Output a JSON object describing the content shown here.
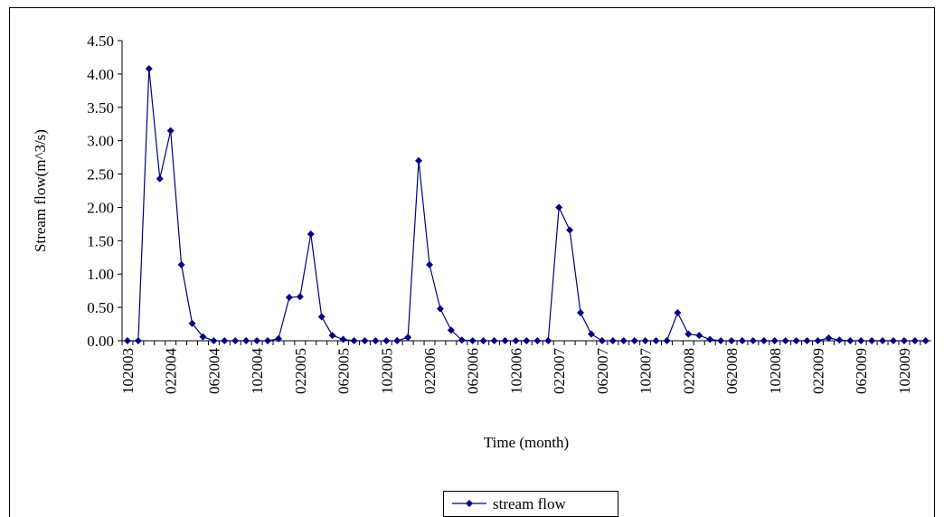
{
  "chart_data": {
    "type": "line",
    "x_label": "Time (month)",
    "y_label": "Stream flow(m^3/s)",
    "categories": [
      "102003",
      null,
      null,
      null,
      "022004",
      null,
      null,
      null,
      "062004",
      null,
      null,
      null,
      "102004",
      null,
      null,
      null,
      "022005",
      null,
      null,
      null,
      "062005",
      null,
      null,
      null,
      "102005",
      null,
      null,
      null,
      "022006",
      null,
      null,
      null,
      "062006",
      null,
      null,
      null,
      "102006",
      null,
      null,
      null,
      "022007",
      null,
      null,
      null,
      "062007",
      null,
      null,
      null,
      "102007",
      null,
      null,
      null,
      "022008",
      null,
      null,
      null,
      "062008",
      null,
      null,
      null,
      "102008",
      null,
      null,
      null,
      "022009",
      null,
      null,
      null,
      "062009",
      null,
      null,
      null,
      "102009",
      null,
      null
    ],
    "series": [
      {
        "name": "stream flow",
        "color": "#000080",
        "values": [
          0,
          0,
          4.08,
          2.43,
          3.15,
          1.14,
          0.26,
          0.06,
          0,
          0,
          0,
          0,
          0,
          0,
          0.03,
          0.65,
          0.66,
          1.6,
          0.36,
          0.08,
          0.02,
          0,
          0,
          0,
          0,
          0,
          0.05,
          2.7,
          1.14,
          0.48,
          0.16,
          0.01,
          0,
          0,
          0,
          0,
          0,
          0,
          0,
          0,
          2.0,
          1.66,
          0.42,
          0.1,
          0,
          0,
          0,
          0,
          0,
          0,
          0,
          0.42,
          0.1,
          0.08,
          0.02,
          0,
          0,
          0,
          0,
          0,
          0,
          0,
          0,
          0,
          0,
          0.04,
          0.01,
          0,
          0,
          0,
          0,
          0,
          0,
          0,
          0
        ]
      }
    ],
    "ylim": [
      0,
      4.5
    ],
    "yticks": [
      {
        "value": 0,
        "label": "0.00"
      },
      {
        "value": 0.5,
        "label": "0.50"
      },
      {
        "value": 1,
        "label": "1.00"
      },
      {
        "value": 1.5,
        "label": "1.50"
      },
      {
        "value": 2,
        "label": "2.00"
      },
      {
        "value": 2.5,
        "label": "2.50"
      },
      {
        "value": 3,
        "label": "3.00"
      },
      {
        "value": 3.5,
        "label": "3.50"
      },
      {
        "value": 4,
        "label": "4.00"
      },
      {
        "value": 4.5,
        "label": "4.50"
      }
    ],
    "legend": "bottom"
  }
}
